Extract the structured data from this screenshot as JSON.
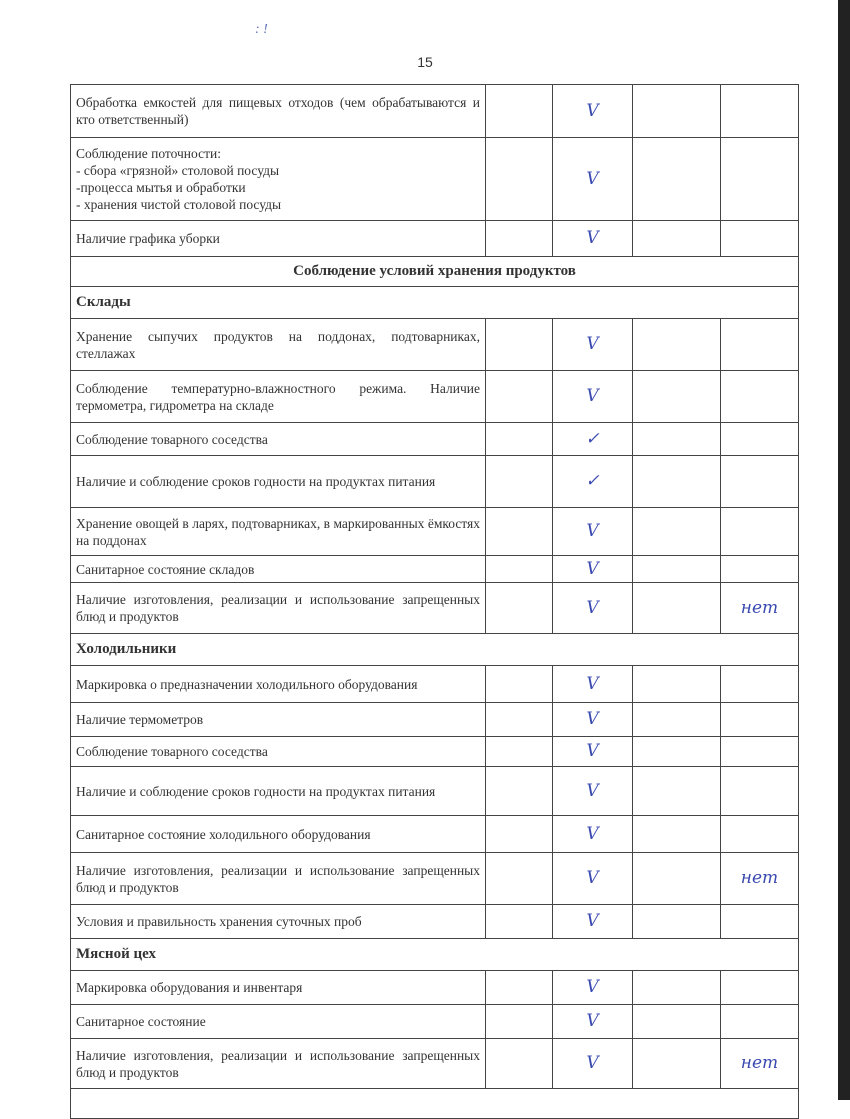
{
  "page_number": "15",
  "top_marks": ": !",
  "rows": [
    {
      "type": "item",
      "text": "Обработка емкостей для пищевых отходов (чем обрабатываются и кто ответственный)",
      "mark": "V",
      "note": "",
      "h": 53
    },
    {
      "type": "item",
      "text": "Соблюдение поточности:\n- сбора «грязной» столовой посуды\n-процесса мытья и обработки\n- хранения чистой столовой посуды",
      "mark": "V",
      "note": "",
      "h": 83
    },
    {
      "type": "item",
      "text": "Наличие графика уборки",
      "mark": "V",
      "note": "",
      "h": 36
    },
    {
      "type": "heading",
      "text": "Соблюдение условий хранения продуктов",
      "h": 30
    },
    {
      "type": "section",
      "text": "Склады",
      "h": 32
    },
    {
      "type": "item",
      "text": "Хранение сыпучих продуктов на поддонах, подтоварниках, стеллажах",
      "mark": "V",
      "note": "",
      "h": 52
    },
    {
      "type": "item",
      "text": "Соблюдение температурно-влажностного режима. Наличие термометра, гидрометра на складе",
      "mark": "V",
      "note": "",
      "h": 52
    },
    {
      "type": "item",
      "text": "Соблюдение товарного соседства",
      "mark": "✓",
      "note": "",
      "h": 33
    },
    {
      "type": "item",
      "text": "Наличие и соблюдение сроков годности на продуктах питания",
      "mark": "✓",
      "note": "",
      "h": 52
    },
    {
      "type": "item",
      "text": "Хранение овощей в ларях, подтоварниках, в маркированных ёмкостях на поддонах",
      "mark": "V",
      "note": "",
      "h": 48
    },
    {
      "type": "item",
      "text": "Санитарное состояние складов",
      "mark": "V",
      "note": "",
      "h": 27
    },
    {
      "type": "item",
      "text": "Наличие изготовления, реализации и использование запрещенных блюд и продуктов",
      "mark": "V",
      "note": "нет",
      "h": 51
    },
    {
      "type": "section",
      "text": "Холодильники",
      "h": 32
    },
    {
      "type": "item",
      "text": "Маркировка о предназначении холодильного оборудования",
      "mark": "V",
      "note": "",
      "h": 37
    },
    {
      "type": "item",
      "text": "Наличие термометров",
      "mark": "V",
      "note": "",
      "h": 34
    },
    {
      "type": "item",
      "text": "Соблюдение товарного соседства",
      "mark": "V",
      "note": "",
      "h": 30
    },
    {
      "type": "item",
      "text": "Наличие и соблюдение сроков годности на продуктах питания",
      "mark": "V",
      "note": "",
      "h": 49
    },
    {
      "type": "item",
      "text": "Санитарное состояние холодильного оборудования",
      "mark": "V",
      "note": "",
      "h": 37
    },
    {
      "type": "item",
      "text": "Наличие изготовления, реализации и использование запрещенных блюд и продуктов",
      "mark": "V",
      "note": "нет",
      "h": 52
    },
    {
      "type": "item",
      "text": "Условия и правильность хранения суточных проб",
      "mark": "V",
      "note": "",
      "h": 34
    },
    {
      "type": "section",
      "text": "Мясной цех",
      "h": 32
    },
    {
      "type": "item",
      "text": "Маркировка оборудования и инвентаря",
      "mark": "V",
      "note": "",
      "h": 34
    },
    {
      "type": "item",
      "text": "Санитарное состояние",
      "mark": "V",
      "note": "",
      "h": 34
    },
    {
      "type": "item",
      "text": "Наличие изготовления, реализации и использование запрещенных блюд и продуктов",
      "mark": "V",
      "note": "нет",
      "h": 50
    },
    {
      "type": "section",
      "text": "",
      "h": 30
    }
  ]
}
